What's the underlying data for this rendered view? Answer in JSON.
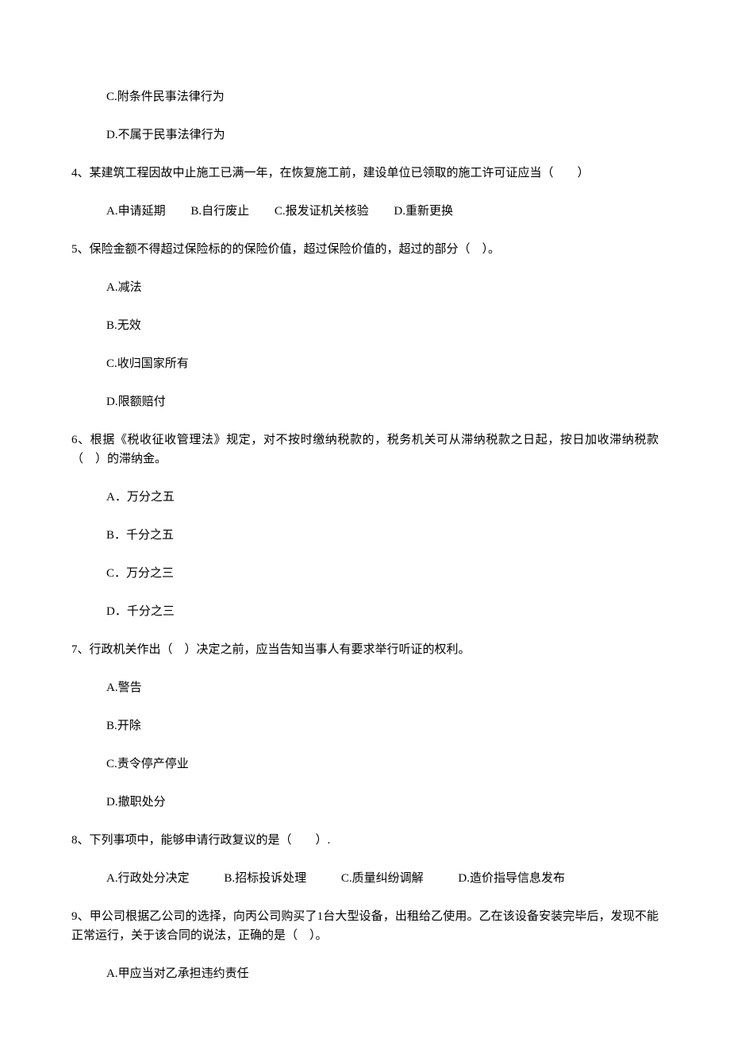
{
  "q3": {
    "optC": "C.附条件民事法律行为",
    "optD": "D.不属于民事法律行为"
  },
  "q4": {
    "stem": "4、某建筑工程因故中止施工已满一年，在恢复施工前，建设单位已领取的施工许可证应当（　　）",
    "optA": "A.申请延期",
    "optB": "B.自行废止",
    "optC": "C.报发证机关核验",
    "optD": "D.重新更换"
  },
  "q5": {
    "stem": "5、保险金额不得超过保险标的的保险价值，超过保险价值的，超过的部分（　）。",
    "optA": "A.减法",
    "optB": "B.无效",
    "optC": "C.收归国家所有",
    "optD": "D.限额赔付"
  },
  "q6": {
    "stem": "6、根据《税收征收管理法》规定，对不按时缴纳税款的，税务机关可从滞纳税款之日起，按日加收滞纳税款（　）的滞纳金。",
    "optA": "A．万分之五",
    "optB": "B．千分之五",
    "optC": "C．万分之三",
    "optD": "D．千分之三"
  },
  "q7": {
    "stem": "7、行政机关作出（　）决定之前，应当告知当事人有要求举行听证的权利。",
    "optA": "A.警告",
    "optB": "B.开除",
    "optC": "C.责令停产停业",
    "optD": "D.撤职处分"
  },
  "q8": {
    "stem": "8、下列事项中，能够申请行政复议的是（　　）.",
    "optA": "A.行政处分决定",
    "optB": "B.招标投诉处理",
    "optC": "C.质量纠纷调解",
    "optD": "D.造价指导信息发布"
  },
  "q9": {
    "stem": "9、甲公司根据乙公司的选择，向丙公司购买了1台大型设备，出租给乙使用。乙在该设备安装完毕后，发现不能正常运行，关于该合同的说法，正确的是（　）。",
    "optA": "A.甲应当对乙承担违约责任"
  }
}
